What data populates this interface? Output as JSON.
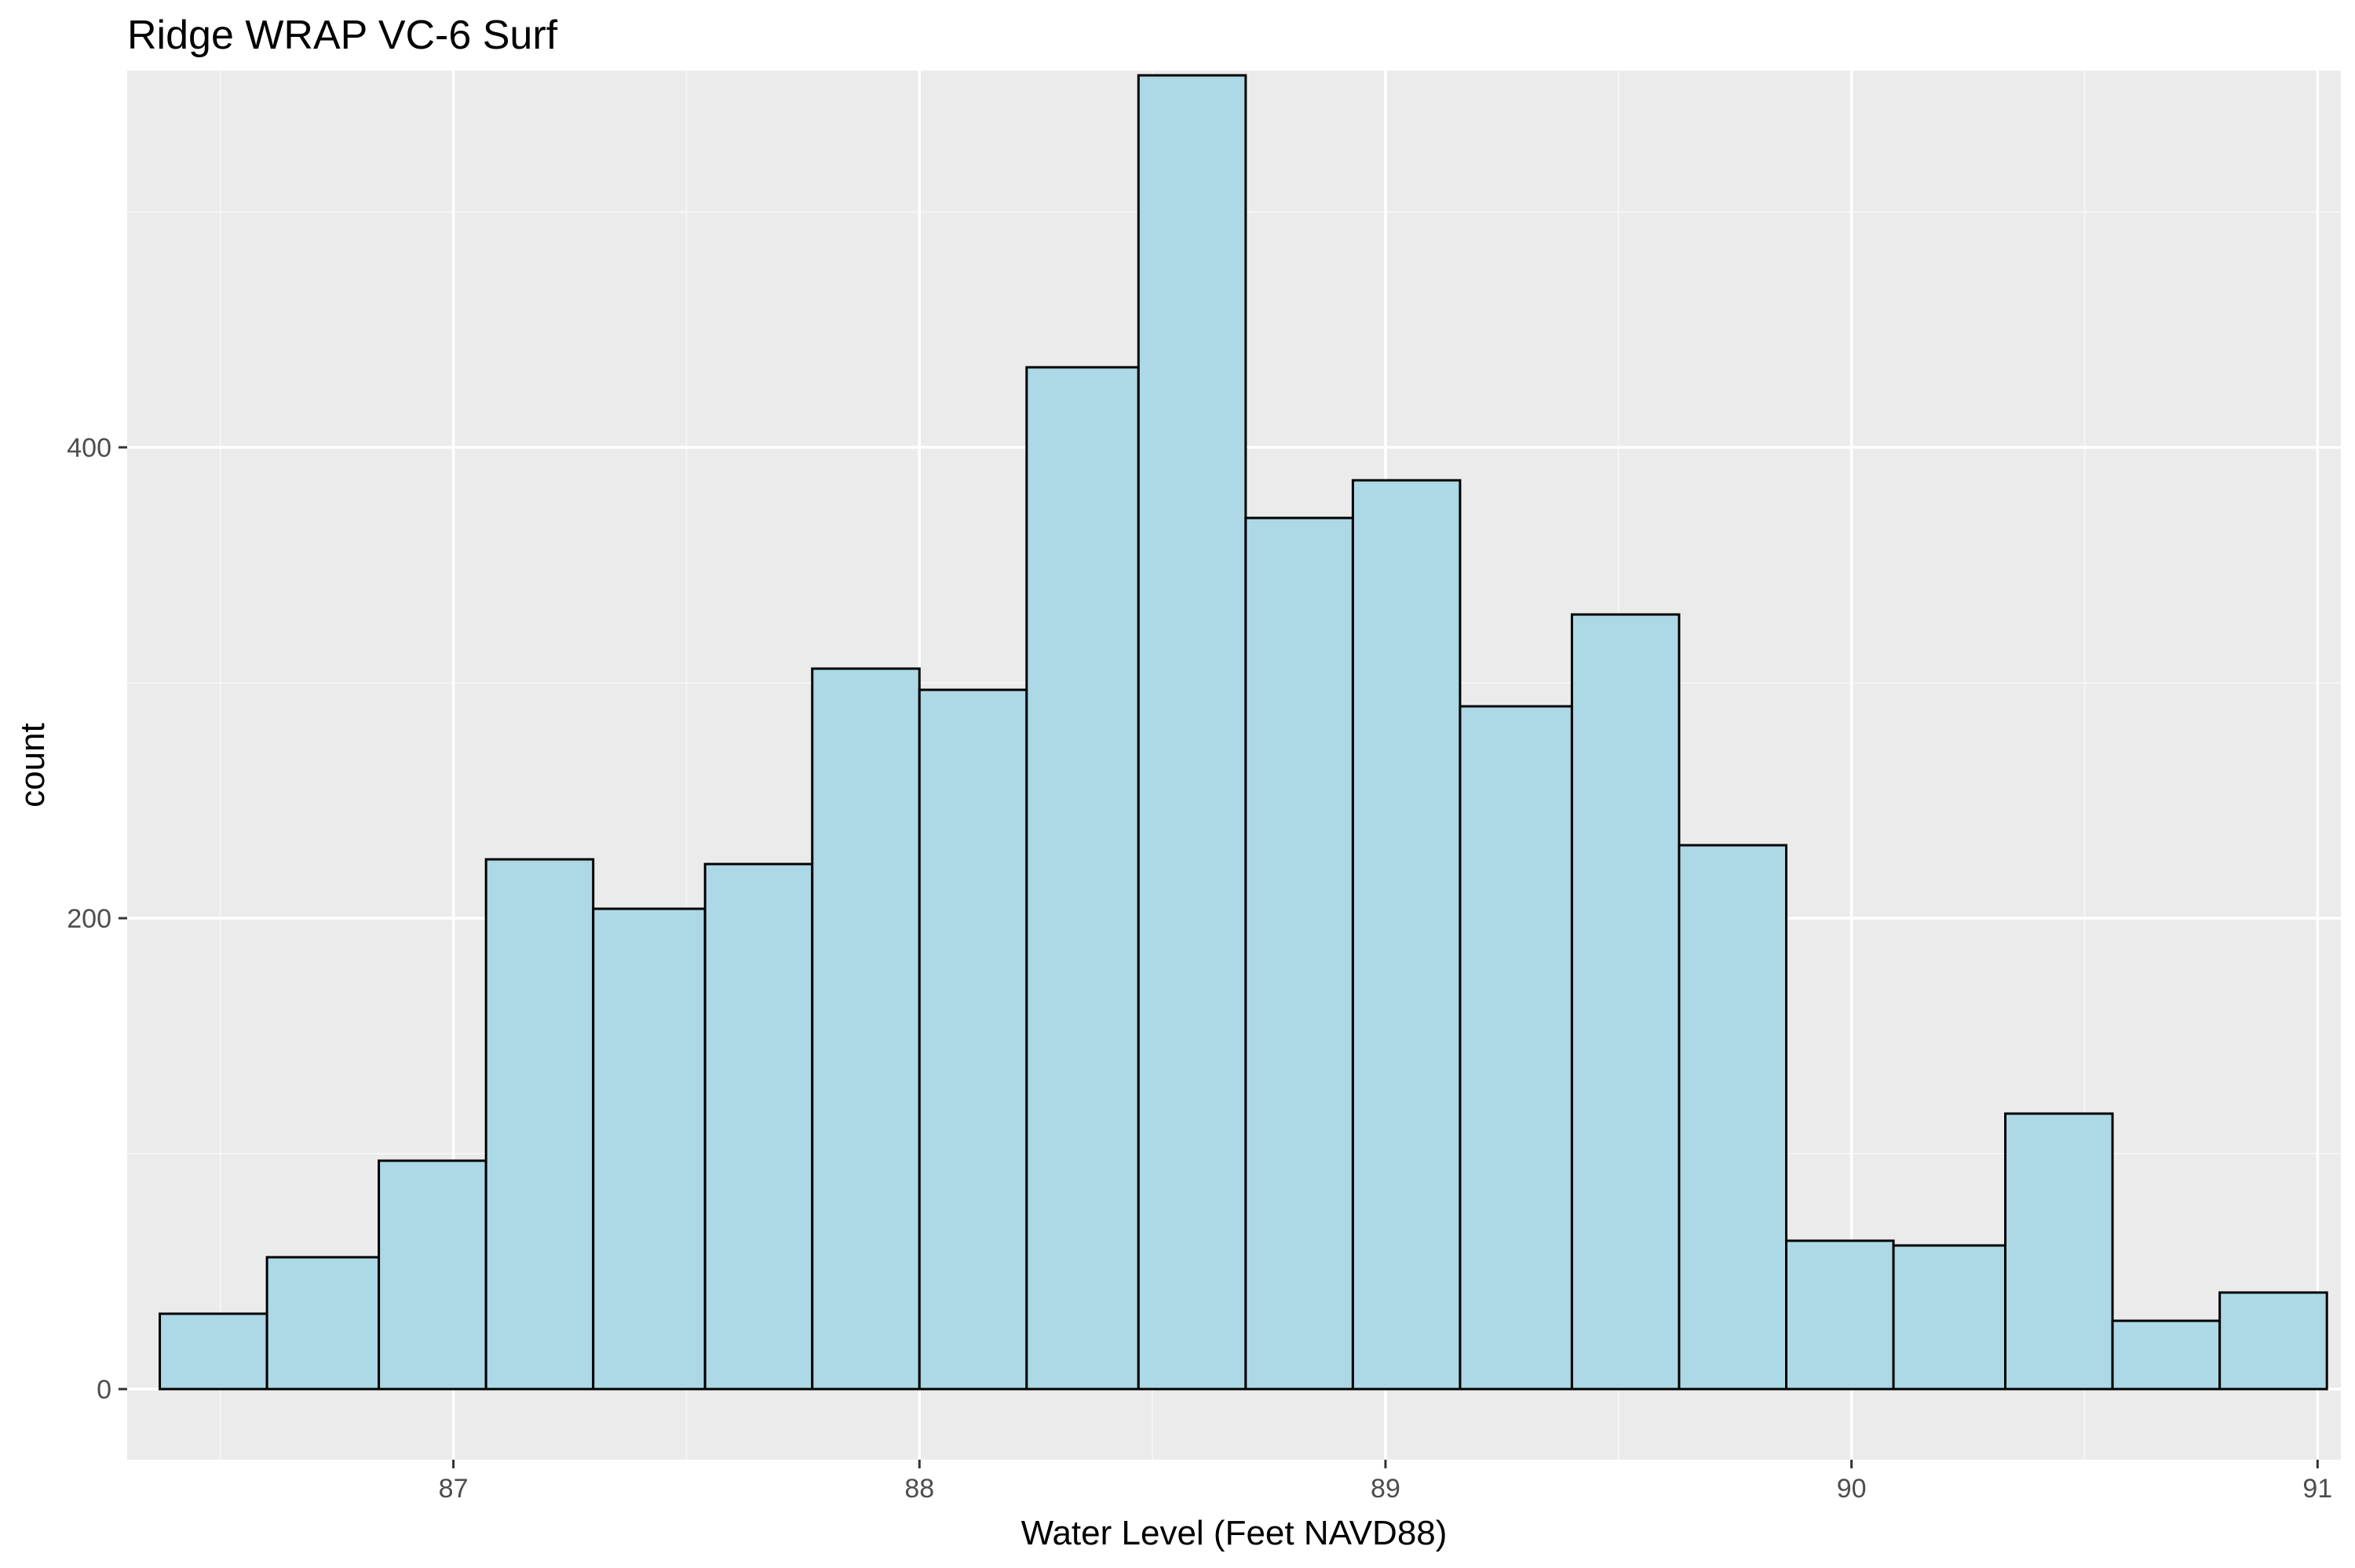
{
  "chart_data": {
    "type": "bar",
    "subtype": "histogram",
    "title": "Ridge WRAP VC-6 Surf",
    "xlabel": "Water Level (Feet NAVD88)",
    "ylabel": "count",
    "xlim": [
      86.3,
      91.05
    ],
    "ylim": [
      -30,
      560
    ],
    "x_ticks": [
      87,
      88,
      89,
      90,
      91
    ],
    "x_tick_labels": [
      "87",
      "88",
      "89",
      "90",
      "91"
    ],
    "y_ticks": [
      0,
      200,
      400
    ],
    "y_tick_labels": [
      "0",
      "200",
      "400"
    ],
    "bins": [
      {
        "x0": 86.37,
        "x1": 86.6,
        "count": 32
      },
      {
        "x0": 86.6,
        "x1": 86.84,
        "count": 56
      },
      {
        "x0": 86.84,
        "x1": 87.07,
        "count": 97
      },
      {
        "x0": 87.07,
        "x1": 87.3,
        "count": 225
      },
      {
        "x0": 87.3,
        "x1": 87.54,
        "count": 204
      },
      {
        "x0": 87.54,
        "x1": 87.77,
        "count": 223
      },
      {
        "x0": 87.77,
        "x1": 88.0,
        "count": 306
      },
      {
        "x0": 88.0,
        "x1": 88.23,
        "count": 297
      },
      {
        "x0": 88.23,
        "x1": 88.47,
        "count": 434
      },
      {
        "x0": 88.47,
        "x1": 88.7,
        "count": 558
      },
      {
        "x0": 88.7,
        "x1": 88.93,
        "count": 370
      },
      {
        "x0": 88.93,
        "x1": 89.16,
        "count": 386
      },
      {
        "x0": 89.16,
        "x1": 89.4,
        "count": 290
      },
      {
        "x0": 89.4,
        "x1": 89.63,
        "count": 329
      },
      {
        "x0": 89.63,
        "x1": 89.86,
        "count": 231
      },
      {
        "x0": 89.86,
        "x1": 90.09,
        "count": 63
      },
      {
        "x0": 90.09,
        "x1": 90.33,
        "count": 61
      },
      {
        "x0": 90.33,
        "x1": 90.56,
        "count": 117
      },
      {
        "x0": 90.56,
        "x1": 90.79,
        "count": 29
      },
      {
        "x0": 90.79,
        "x1": 91.02,
        "count": 41
      }
    ],
    "grid": true,
    "legend": "none",
    "colors": {
      "panel_background": "#ebebeb",
      "grid_major": "#ffffff",
      "grid_minor": "#f5f5f5",
      "bar_fill": "#add8e6",
      "bar_outline": "#000000",
      "tick_text": "#4d4d4d",
      "tick_mark": "#333333"
    }
  }
}
